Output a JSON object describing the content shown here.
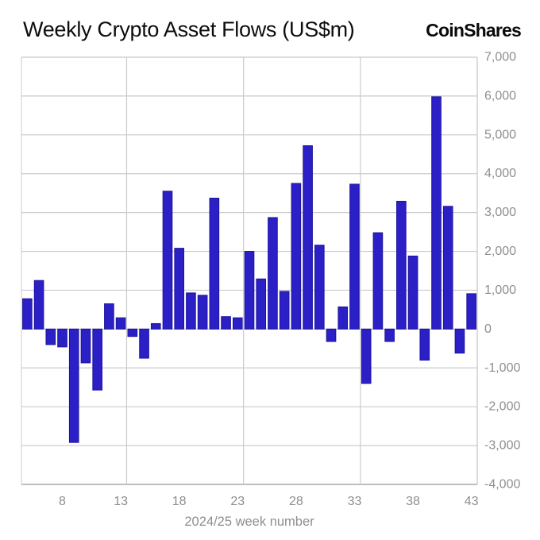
{
  "header": {
    "title": "Weekly Crypto Asset Flows (US$m)",
    "logo": "CoinShares"
  },
  "chart_data": {
    "type": "bar",
    "title": "Weekly Crypto Asset Flows (US$m)",
    "xlabel": "2024/25 week number",
    "ylabel": "",
    "x": [
      5,
      6,
      7,
      8,
      9,
      10,
      11,
      12,
      13,
      14,
      15,
      16,
      17,
      18,
      19,
      20,
      21,
      22,
      23,
      24,
      25,
      26,
      27,
      28,
      29,
      30,
      31,
      32,
      33,
      34,
      35,
      36,
      37,
      38,
      39,
      40,
      41,
      42,
      43
    ],
    "values": [
      780,
      1250,
      -400,
      -460,
      -2920,
      -870,
      -1570,
      650,
      290,
      -190,
      -750,
      140,
      3550,
      2080,
      930,
      870,
      3370,
      320,
      290,
      2000,
      1290,
      2870,
      970,
      3750,
      4720,
      2160,
      -320,
      570,
      3730,
      -1400,
      2480,
      -320,
      3290,
      1880,
      -800,
      5980,
      3160,
      -620,
      910
    ],
    "x_tick_labels": [
      8,
      13,
      18,
      23,
      28,
      33,
      38,
      43
    ],
    "y_tick_labels": [
      "7,000",
      "6,000",
      "5,000",
      "4,000",
      "3,000",
      "2,000",
      "1,000",
      "0",
      "-1,000",
      "-2,000",
      "-3,000",
      "-4,000"
    ],
    "y_ticks": [
      7000,
      6000,
      5000,
      4000,
      3000,
      2000,
      1000,
      0,
      -1000,
      -2000,
      -3000,
      -4000
    ],
    "ylim": [
      -4000,
      7000
    ],
    "vertical_gridline_weeks": [
      13,
      23,
      33,
      43
    ],
    "grid": "on",
    "legend": "none",
    "y_axis_side": "right",
    "colors": {
      "bar_fill": "#2b1fc6",
      "bar_edge": "#1c149c",
      "grid": "#cbcbcb",
      "axis_line": "#a8a8a8",
      "tick_text": "#8e8e8e",
      "title_text": "#0d0d0d"
    }
  }
}
